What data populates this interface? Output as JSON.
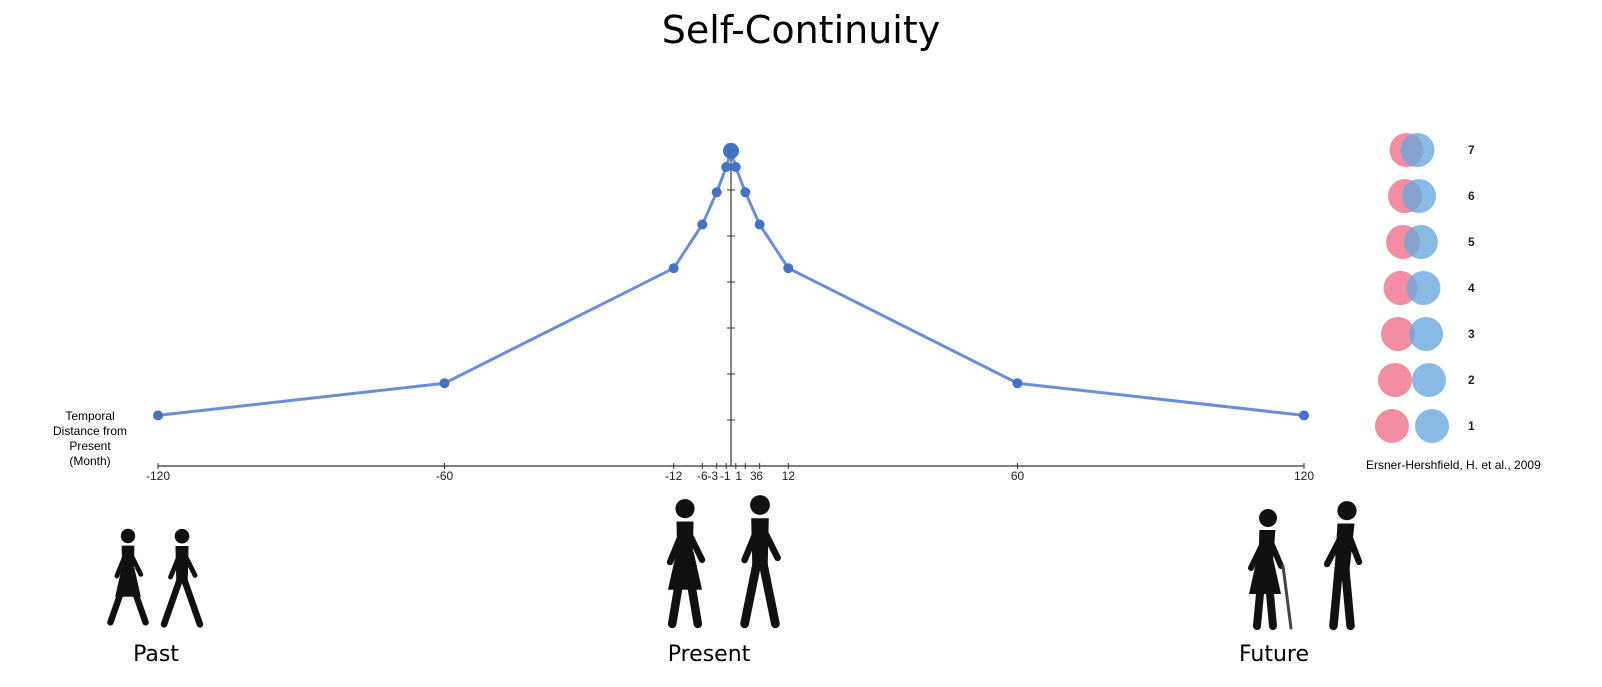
{
  "title": "Self-Continuity",
  "chart_data": {
    "type": "line",
    "title": "Self-Continuity",
    "xlabel": "Temporal Distance from Present (Month)",
    "ylabel": "",
    "x_tick_labels": [
      "-120",
      "-60",
      "-12",
      "-6",
      "-3",
      "-1",
      "1",
      "3",
      "6",
      "12",
      "60",
      "120"
    ],
    "x_ticks": [
      -120,
      -60,
      -12,
      -6,
      -3,
      -1,
      1,
      3,
      6,
      12,
      60,
      120
    ],
    "ylim": [
      0,
      7
    ],
    "y_ticks": [
      1,
      2,
      3,
      4,
      5,
      6,
      7
    ],
    "series": [
      {
        "x": [
          -120,
          -60,
          -12,
          -6,
          -3,
          -1,
          0,
          1,
          3,
          6,
          12,
          60,
          120
        ],
        "y": [
          1.1,
          1.8,
          4.3,
          5.25,
          5.95,
          6.5,
          6.85,
          6.5,
          5.95,
          5.25,
          4.3,
          1.8,
          1.1
        ]
      }
    ],
    "grid": false,
    "line_color": "#6a8fd8",
    "marker_color": "#4472c4"
  },
  "scale_legend": {
    "items": [
      "7",
      "6",
      "5",
      "4",
      "3",
      "2",
      "1"
    ],
    "past_color": "#f07a90",
    "future_color": "#6aa9dc",
    "overlap_color": "#7d6fa8"
  },
  "citation": "Ersner-Hershfield, H. et al., 2009",
  "eras": [
    "Past",
    "Present",
    "Future"
  ]
}
